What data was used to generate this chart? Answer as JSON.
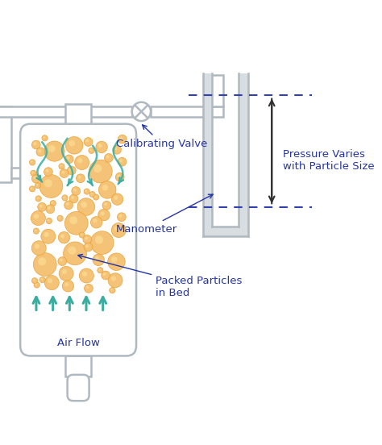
{
  "bg_color": "#ffffff",
  "border_color": "#b0b8c0",
  "tube_fill": "#ffffff",
  "man_fill": "#d8dde2",
  "particle_color": "#f5c070",
  "particle_edge": "#e8a030",
  "flow_color": "#3aada0",
  "label_color": "#2535a5",
  "dashed_color": "#3040b0",
  "pressure_arrow_color": "#404040",
  "labels": {
    "calibrating_valve": "Calibrating Valve",
    "manometer": "Manometer",
    "packed_particles": "Packed Particles\nin Bed",
    "air_flow": "Air Flow",
    "pressure_varies": "Pressure Varies\nwith Particle Size"
  }
}
